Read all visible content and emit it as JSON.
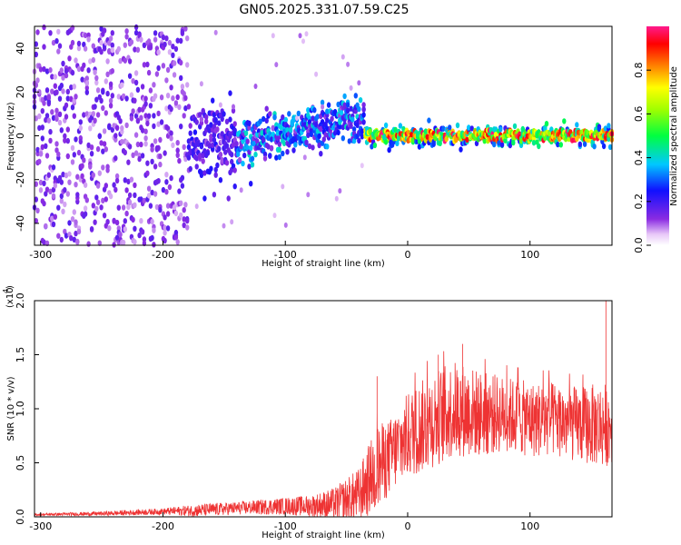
{
  "figure": {
    "title": "GN05.2025.331.07.59.C25"
  },
  "chart_data": [
    {
      "type": "heatmap",
      "xlabel": "Height of straight line (km)",
      "ylabel": "Frequency (Hz)",
      "xlim": [
        -305,
        167
      ],
      "ylim": [
        -50,
        50
      ],
      "xticks": [
        -300,
        -200,
        -100,
        0,
        100
      ],
      "xtick_labels": [
        "-300",
        "-200",
        "-100",
        "0",
        "100"
      ],
      "yticks": [
        -40,
        -20,
        0,
        20,
        40
      ],
      "ytick_labels": [
        "-40",
        "-20",
        "0",
        "20",
        "40"
      ],
      "colorbar": {
        "label": "Normalized spectral amplitude",
        "range": [
          0,
          1
        ],
        "ticks": [
          0.0,
          0.2,
          0.4,
          0.6,
          0.8
        ],
        "tick_labels": [
          "0.0",
          "0.2",
          "0.4",
          "0.6",
          "0.8"
        ],
        "colormap": "rainbow (white→violet→blue→cyan→green→yellow→orange→red→pink)"
      },
      "bands": [
        {
          "x_range": [
            -305,
            -180
          ],
          "frequency_spread": [
            -50,
            50
          ],
          "amplitude": [
            0.05,
            0.2
          ],
          "description": "scattered noise"
        },
        {
          "x_range": [
            -180,
            -140
          ],
          "frequency_center": -3,
          "frequency_spread": [
            -12,
            8
          ],
          "amplitude": [
            0.1,
            0.25
          ]
        },
        {
          "x_range": [
            -140,
            -35
          ],
          "frequency_center_start": -3,
          "frequency_center_end": 8,
          "amplitude": [
            0.1,
            0.45
          ]
        },
        {
          "x_range": [
            -35,
            167
          ],
          "frequency_center": 0,
          "frequency_spread": [
            -4,
            4
          ],
          "amplitude": [
            0.4,
            1.0
          ]
        }
      ]
    },
    {
      "type": "line",
      "xlabel": "Height of straight line (km)",
      "ylabel": "SNR (10 * v/v)",
      "y_scale_label": "(x10",
      "y_scale_exponent": "4",
      "xlim": [
        -305,
        167
      ],
      "ylim": [
        0,
        2.0
      ],
      "xticks": [
        -300,
        -200,
        -100,
        0,
        100
      ],
      "xtick_labels": [
        "-300",
        "-200",
        "-100",
        "0",
        "100"
      ],
      "yticks": [
        0.0,
        0.5,
        1.0,
        1.5,
        2.0
      ],
      "ytick_labels": [
        "0.0",
        "0.5",
        "1.0",
        "1.5",
        "2.0"
      ],
      "color": "#ee3333",
      "envelope": {
        "x": [
          -305,
          -250,
          -200,
          -170,
          -140,
          -100,
          -80,
          -60,
          -40,
          -25,
          -15,
          0,
          20,
          40,
          60,
          80,
          100,
          120,
          140,
          160,
          167
        ],
        "y_mean": [
          0.02,
          0.03,
          0.05,
          0.06,
          0.08,
          0.1,
          0.1,
          0.12,
          0.2,
          0.45,
          0.55,
          0.75,
          0.9,
          1.0,
          0.95,
          0.95,
          0.9,
          0.9,
          0.85,
          0.85,
          0.85
        ],
        "y_spread": [
          0.01,
          0.02,
          0.03,
          0.06,
          0.06,
          0.08,
          0.1,
          0.15,
          0.25,
          0.4,
          0.35,
          0.4,
          0.45,
          0.45,
          0.4,
          0.35,
          0.35,
          0.35,
          0.35,
          0.4,
          0.35
        ]
      },
      "peaks": [
        {
          "x": 162,
          "y": 2.0
        },
        {
          "x": 45,
          "y": 1.6
        },
        {
          "x": -25,
          "y": 1.3
        },
        {
          "x": 25,
          "y": 1.5
        }
      ]
    }
  ]
}
